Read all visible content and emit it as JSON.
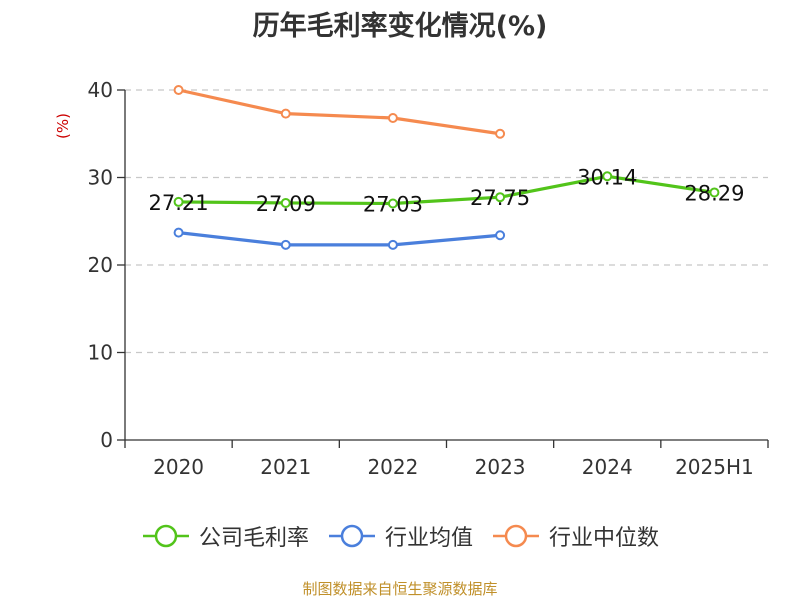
{
  "chart_data": {
    "type": "line",
    "title": "历年毛利率变化情况(%)",
    "unit_label": "(%)",
    "categories": [
      "2020",
      "2021",
      "2022",
      "2023",
      "2024",
      "2025H1"
    ],
    "ylim": [
      0,
      40
    ],
    "yticks": [
      0,
      10,
      20,
      30,
      40
    ],
    "grid": true,
    "legend_position": "bottom",
    "series": [
      {
        "name": "公司毛利率",
        "color": "#52c41a",
        "show_labels": true,
        "values": [
          27.21,
          27.09,
          27.03,
          27.75,
          30.14,
          28.29
        ]
      },
      {
        "name": "行业均值",
        "color": "#4a7fdc",
        "show_labels": false,
        "values": [
          23.7,
          22.3,
          22.3,
          23.4,
          null,
          null
        ]
      },
      {
        "name": "行业中位数",
        "color": "#f58a4f",
        "show_labels": false,
        "values": [
          40.0,
          37.3,
          36.8,
          35.0,
          null,
          null
        ]
      }
    ]
  },
  "source": "制图数据来自恒生聚源数据库",
  "colors": {
    "axis": "#333333",
    "grid": "#c8c8c8",
    "unit_label": "#cc0000",
    "source": "#c0902a"
  }
}
